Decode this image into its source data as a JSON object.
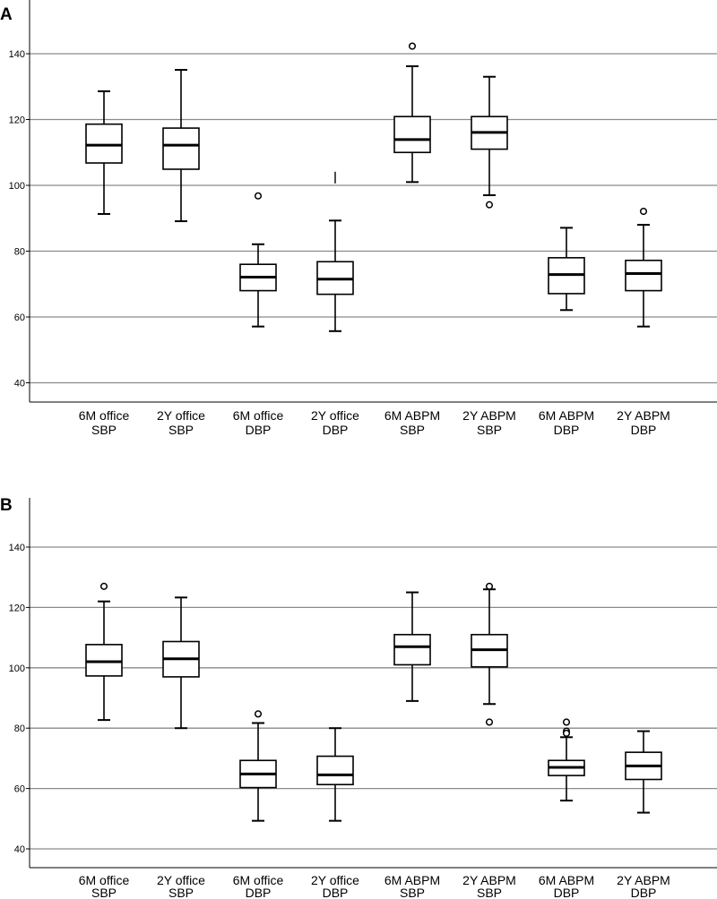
{
  "chart_data": [
    {
      "panel": "A",
      "type": "boxplot",
      "ylim": [
        30,
        160
      ],
      "yticks": [
        "40",
        "60",
        "80",
        "100",
        "120",
        "140"
      ],
      "grid": true,
      "categories": [
        [
          "6M office",
          "SBP"
        ],
        [
          "2Y office",
          "SBP"
        ],
        [
          "6M office",
          "DBP"
        ],
        [
          "2Y office",
          "DBP"
        ],
        [
          "6M ABPM",
          "SBP"
        ],
        [
          "2Y ABPM",
          "SBP"
        ],
        [
          "6M ABPM",
          "DBP"
        ],
        [
          "2Y ABPM",
          "DBP"
        ]
      ],
      "boxes": [
        {
          "whisker_low": 91.3,
          "q1": 106.8,
          "median": 112.2,
          "q3": 118.6,
          "whisker_high": 128.6,
          "outliers": []
        },
        {
          "whisker_low": 89.1,
          "q1": 104.9,
          "median": 112.2,
          "q3": 117.4,
          "whisker_high": 135.1,
          "outliers": []
        },
        {
          "whisker_low": 57.1,
          "q1": 68.0,
          "median": 72.1,
          "q3": 76.0,
          "whisker_high": 82.1,
          "outliers": [
            96.8
          ]
        },
        {
          "whisker_low": 55.7,
          "q1": 66.9,
          "median": 71.5,
          "q3": 76.8,
          "whisker_high": 89.3,
          "outliers": [
            102.5
          ]
        },
        {
          "whisker_low": 101.0,
          "q1": 110.0,
          "median": 113.9,
          "q3": 120.9,
          "whisker_high": 136.2,
          "outliers": [
            142.3
          ]
        },
        {
          "whisker_low": 97.0,
          "q1": 111.0,
          "median": 116.1,
          "q3": 120.9,
          "whisker_high": 133.0,
          "outliers": [
            94.1
          ]
        },
        {
          "whisker_low": 62.1,
          "q1": 67.1,
          "median": 72.9,
          "q3": 78.0,
          "whisker_high": 87.1,
          "outliers": []
        },
        {
          "whisker_low": 57.1,
          "q1": 68.0,
          "median": 73.2,
          "q3": 77.2,
          "whisker_high": 88.0,
          "outliers": [
            92.1
          ]
        }
      ]
    },
    {
      "panel": "B",
      "type": "boxplot",
      "ylim": [
        30,
        150
      ],
      "yticks": [
        "40",
        "60",
        "80",
        "100",
        "120",
        "140"
      ],
      "grid": true,
      "categories": [
        [
          "6M office",
          "SBP"
        ],
        [
          "2Y office",
          "SBP"
        ],
        [
          "6M office",
          "DBP"
        ],
        [
          "2Y office",
          "DBP"
        ],
        [
          "6M ABPM",
          "SBP"
        ],
        [
          "2Y ABPM",
          "SBP"
        ],
        [
          "6M ABPM",
          "DBP"
        ],
        [
          "2Y ABPM",
          "DBP"
        ]
      ],
      "boxes": [
        {
          "whisker_low": 82.7,
          "q1": 97.3,
          "median": 102.0,
          "q3": 107.7,
          "whisker_high": 122.0,
          "outliers": [
            127.0
          ]
        },
        {
          "whisker_low": 80.0,
          "q1": 97.0,
          "median": 103.0,
          "q3": 108.7,
          "whisker_high": 123.3,
          "outliers": []
        },
        {
          "whisker_low": 49.3,
          "q1": 60.3,
          "median": 64.8,
          "q3": 69.3,
          "whisker_high": 81.7,
          "outliers": [
            84.7
          ]
        },
        {
          "whisker_low": 49.3,
          "q1": 61.3,
          "median": 64.5,
          "q3": 70.7,
          "whisker_high": 80.0,
          "outliers": []
        },
        {
          "whisker_low": 89.0,
          "q1": 101.0,
          "median": 107.0,
          "q3": 111.0,
          "whisker_high": 125.0,
          "outliers": []
        },
        {
          "whisker_low": 88.0,
          "q1": 100.3,
          "median": 106.0,
          "q3": 111.0,
          "whisker_high": 126.0,
          "outliers": [
            127.0,
            82.0
          ]
        },
        {
          "whisker_low": 56.0,
          "q1": 64.3,
          "median": 67.0,
          "q3": 69.3,
          "whisker_high": 77.0,
          "outliers": [
            82.0,
            79.0,
            78.3
          ]
        },
        {
          "whisker_low": 52.0,
          "q1": 63.0,
          "median": 67.5,
          "q3": 72.0,
          "whisker_high": 79.0,
          "outliers": []
        }
      ]
    }
  ]
}
